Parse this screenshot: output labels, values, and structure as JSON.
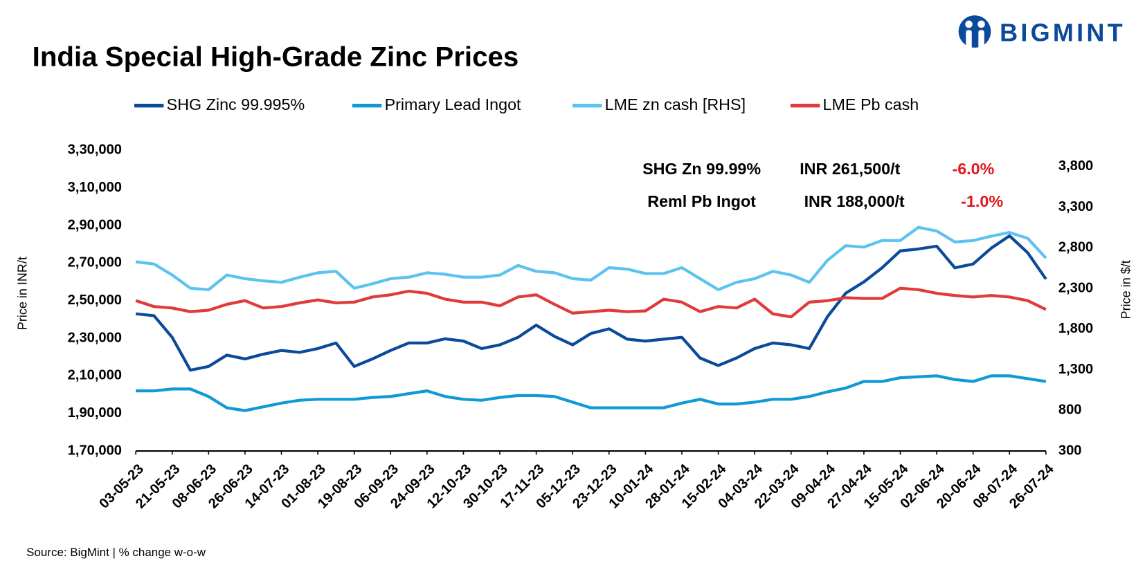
{
  "chart_data": {
    "type": "line",
    "title": "India Special High-Grade Zinc Prices",
    "logo": "BIGMINT",
    "source": "Source: BigMint | % change w-o-w",
    "y_label": "Price in INR/t",
    "y2_label": "Price in $/t",
    "annotations": [
      [
        "SHG Zn 99.99%",
        "INR 261,500/t",
        "-6.0%"
      ],
      [
        "Reml Pb Ingot",
        "INR 188,000/t",
        "-1.0%"
      ]
    ],
    "x": [
      "03-05-23",
      "12-05-23",
      "21-05-23",
      "30-05-23",
      "08-06-23",
      "17-06-23",
      "26-06-23",
      "05-07-23",
      "14-07-23",
      "23-07-23",
      "01-08-23",
      "10-08-23",
      "19-08-23",
      "28-08-23",
      "06-09-23",
      "15-09-23",
      "24-09-23",
      "03-10-23",
      "12-10-23",
      "21-10-23",
      "30-10-23",
      "08-11-23",
      "17-11-23",
      "26-11-23",
      "05-12-23",
      "14-12-23",
      "23-12-23",
      "01-01-24",
      "10-01-24",
      "19-01-24",
      "28-01-24",
      "06-02-24",
      "15-02-24",
      "24-02-24",
      "04-03-24",
      "13-03-24",
      "22-03-24",
      "31-03-24",
      "09-04-24",
      "18-04-24",
      "27-04-24",
      "06-05-24",
      "15-05-24",
      "24-05-24",
      "02-06-24",
      "11-06-24",
      "20-06-24",
      "29-06-24",
      "08-07-24",
      "17-07-24",
      "26-07-24"
    ],
    "xlim": [
      "03-05-23",
      "26-07-24"
    ],
    "xticks": [
      "03-05-23",
      "21-05-23",
      "08-06-23",
      "26-06-23",
      "14-07-23",
      "01-08-23",
      "19-08-23",
      "06-09-23",
      "24-09-23",
      "12-10-23",
      "30-10-23",
      "17-11-23",
      "05-12-23",
      "23-12-23",
      "10-01-24",
      "28-01-24",
      "15-02-24",
      "04-03-24",
      "22-03-24",
      "09-04-24",
      "27-04-24",
      "15-05-24",
      "02-06-24",
      "20-06-24",
      "08-07-24",
      "26-07-24"
    ],
    "ylim": [
      170000,
      330000
    ],
    "yticks": [
      {
        "value": 170000,
        "label": "1,70,000"
      },
      {
        "value": 190000,
        "label": "1,90,000"
      },
      {
        "value": 210000,
        "label": "2,10,000"
      },
      {
        "value": 230000,
        "label": "2,30,000"
      },
      {
        "value": 250000,
        "label": "2,50,000"
      },
      {
        "value": 270000,
        "label": "2,70,000"
      },
      {
        "value": 290000,
        "label": "2,90,000"
      },
      {
        "value": 310000,
        "label": "3,10,000"
      },
      {
        "value": 330000,
        "label": "3,30,000"
      }
    ],
    "y2lim": [
      300,
      4000
    ],
    "y2ticks": [
      300,
      800,
      {
        "value": 1300,
        "label": "1,300"
      },
      {
        "value": 1800,
        "label": "1,800"
      },
      {
        "value": 2300,
        "label": "2,300"
      },
      {
        "value": 2800,
        "label": "2,800"
      },
      {
        "value": 3300,
        "label": "3,300"
      },
      {
        "value": 3800,
        "label": "3,800"
      }
    ],
    "grid": false,
    "legend": "top",
    "series": [
      {
        "name": "SHG Zinc 99.995%",
        "color": "#0b4a9b",
        "values": [
          243000,
          242000,
          230500,
          213000,
          215000,
          221000,
          219000,
          221500,
          223500,
          222500,
          224500,
          227500,
          215000,
          219000,
          223500,
          227500,
          227500,
          229700,
          228500,
          224500,
          226500,
          230500,
          237000,
          231000,
          226500,
          232500,
          235000,
          229500,
          228500,
          229500,
          230500,
          219500,
          215500,
          219500,
          224500,
          227500,
          226500,
          224500,
          241500,
          254000,
          260000,
          267500,
          276500,
          277500,
          279000,
          267500,
          269500,
          278000,
          284500,
          275500,
          261500
        ]
      },
      {
        "name": "Primary Lead Ingot",
        "color": "#0f9ad6",
        "values": [
          202000,
          202000,
          203000,
          203000,
          199000,
          193000,
          191500,
          193500,
          195500,
          197000,
          197500,
          197500,
          197500,
          198500,
          199000,
          200500,
          202000,
          199000,
          197500,
          197000,
          198500,
          199500,
          199500,
          199000,
          196000,
          193000,
          193000,
          193000,
          193000,
          193000,
          195500,
          197500,
          195000,
          195000,
          196000,
          197500,
          197500,
          199000,
          201500,
          203500,
          207000,
          207000,
          209000,
          209500,
          210000,
          208000,
          207000,
          210000,
          210000,
          208500,
          207000
        ]
      },
      {
        "name": "LME zn cash [RHS]",
        "color": "#5cc3ee",
        "axis": "y2",
        "values": [
          2628,
          2601,
          2466,
          2303,
          2285,
          2466,
          2421,
          2394,
          2376,
          2439,
          2493,
          2511,
          2303,
          2358,
          2421,
          2439,
          2493,
          2475,
          2439,
          2439,
          2466,
          2583,
          2511,
          2493,
          2421,
          2403,
          2556,
          2538,
          2484,
          2484,
          2556,
          2421,
          2285,
          2376,
          2421,
          2511,
          2466,
          2376,
          2646,
          2827,
          2809,
          2890,
          2890,
          3052,
          3007,
          2872,
          2890,
          2944,
          2989,
          2917,
          2673
        ]
      },
      {
        "name": "LME Pb cash",
        "color": "#e03b3b",
        "axis": "y2",
        "values": [
          2150,
          2078,
          2060,
          2015,
          2033,
          2105,
          2150,
          2060,
          2078,
          2123,
          2159,
          2123,
          2132,
          2195,
          2222,
          2267,
          2240,
          2168,
          2132,
          2132,
          2087,
          2195,
          2222,
          2105,
          1997,
          2015,
          2033,
          2015,
          2024,
          2168,
          2132,
          2015,
          2078,
          2060,
          2168,
          1988,
          1951,
          2132,
          2150,
          2186,
          2177,
          2177,
          2303,
          2285,
          2240,
          2213,
          2195,
          2213,
          2195,
          2150,
          2042
        ]
      }
    ]
  }
}
